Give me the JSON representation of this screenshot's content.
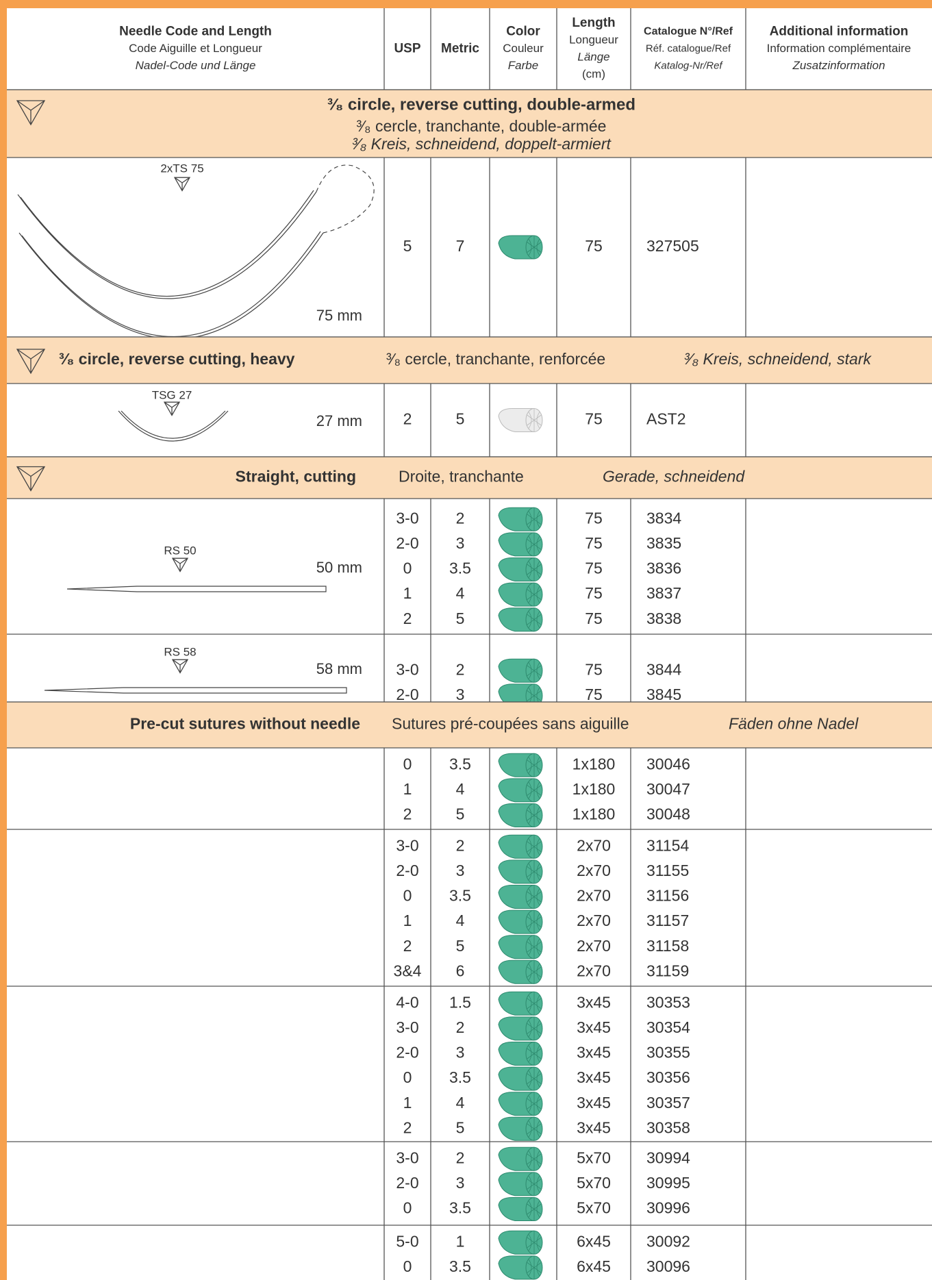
{
  "header": {
    "columns": [
      {
        "en": "Needle Code and Length",
        "fr": "Code Aiguille et Longueur",
        "de": "Nadel-Code und Länge"
      },
      {
        "en": "USP"
      },
      {
        "en": "Metric"
      },
      {
        "en": "Color",
        "fr": "Couleur",
        "de": "Farbe"
      },
      {
        "en": "Length",
        "fr": "Longueur",
        "de": "Länge",
        "unit": "(cm)"
      },
      {
        "en": "Catalogue N°/Ref",
        "fr": "Réf. catalogue/Ref",
        "de": "Katalog-Nr/Ref"
      },
      {
        "en": "Additional information",
        "fr": "Information complémentaire",
        "de": "Zusatzinformation"
      }
    ]
  },
  "sections": [
    {
      "title": {
        "en": "³⁄₈ circle, reverse cutting, double-armed",
        "fr": "³⁄₈ cercle, tranchante, double-armée",
        "de": "³⁄₈ Kreis, schneidend, doppelt-armiert"
      },
      "groups": [
        {
          "needle": "2xTS 75",
          "needle_length": "75 mm",
          "color": "#4db394",
          "items": [
            [
              "5",
              "7",
              "75",
              "327505"
            ]
          ]
        }
      ]
    },
    {
      "title": {
        "en": "³⁄₈ circle, reverse cutting, heavy",
        "fr": "³⁄₈ cercle, tranchante, renforcée",
        "de": "³⁄₈ Kreis, schneidend, stark"
      },
      "groups": [
        {
          "needle": "TSG 27",
          "needle_length": "27 mm",
          "color": "#ececec",
          "items": [
            [
              "2",
              "5",
              "75",
              "AST2"
            ]
          ]
        }
      ]
    },
    {
      "title": {
        "en": "Straight, cutting",
        "fr": "Droite, tranchante",
        "de": "Gerade, schneidend"
      },
      "groups": [
        {
          "needle": "RS 50",
          "needle_length": "50 mm",
          "color": "#4db394",
          "items": [
            [
              "3-0",
              "2",
              "75",
              "3834"
            ],
            [
              "2-0",
              "3",
              "75",
              "3835"
            ],
            [
              "0",
              "3.5",
              "75",
              "3836"
            ],
            [
              "1",
              "4",
              "75",
              "3837"
            ],
            [
              "2",
              "5",
              "75",
              "3838"
            ]
          ]
        },
        {
          "needle": "RS 58",
          "needle_length": "58 mm",
          "color": "#4db394",
          "items": [
            [
              "3-0",
              "2",
              "75",
              "3844"
            ],
            [
              "2-0",
              "3",
              "75",
              "3845"
            ]
          ]
        }
      ]
    },
    {
      "title": {
        "en": "Pre-cut sutures without needle",
        "fr": "Sutures pré-coupées sans aiguille",
        "de": "Fäden ohne Nadel"
      },
      "groups": [
        {
          "color": "#4db394",
          "items": [
            [
              "0",
              "3.5",
              "1x180",
              "30046"
            ],
            [
              "1",
              "4",
              "1x180",
              "30047"
            ],
            [
              "2",
              "5",
              "1x180",
              "30048"
            ]
          ]
        },
        {
          "color": "#4db394",
          "items": [
            [
              "3-0",
              "2",
              "2x70",
              "31154"
            ],
            [
              "2-0",
              "3",
              "2x70",
              "31155"
            ],
            [
              "0",
              "3.5",
              "2x70",
              "31156"
            ],
            [
              "1",
              "4",
              "2x70",
              "31157"
            ],
            [
              "2",
              "5",
              "2x70",
              "31158"
            ],
            [
              "3&4",
              "6",
              "2x70",
              "31159"
            ]
          ]
        },
        {
          "color": "#4db394",
          "items": [
            [
              "4-0",
              "1.5",
              "3x45",
              "30353"
            ],
            [
              "3-0",
              "2",
              "3x45",
              "30354"
            ],
            [
              "2-0",
              "3",
              "3x45",
              "30355"
            ],
            [
              "0",
              "3.5",
              "3x45",
              "30356"
            ],
            [
              "1",
              "4",
              "3x45",
              "30357"
            ],
            [
              "2",
              "5",
              "3x45",
              "30358"
            ]
          ]
        },
        {
          "color": "#4db394",
          "items": [
            [
              "3-0",
              "2",
              "5x70",
              "30994"
            ],
            [
              "2-0",
              "3",
              "5x70",
              "30995"
            ],
            [
              "0",
              "3.5",
              "5x70",
              "30996"
            ]
          ]
        },
        {
          "color": "#4db394",
          "items": [
            [
              "5-0",
              "1",
              "6x45",
              "30092"
            ],
            [
              "0",
              "3.5",
              "6x45",
              "30096"
            ]
          ]
        }
      ]
    }
  ]
}
